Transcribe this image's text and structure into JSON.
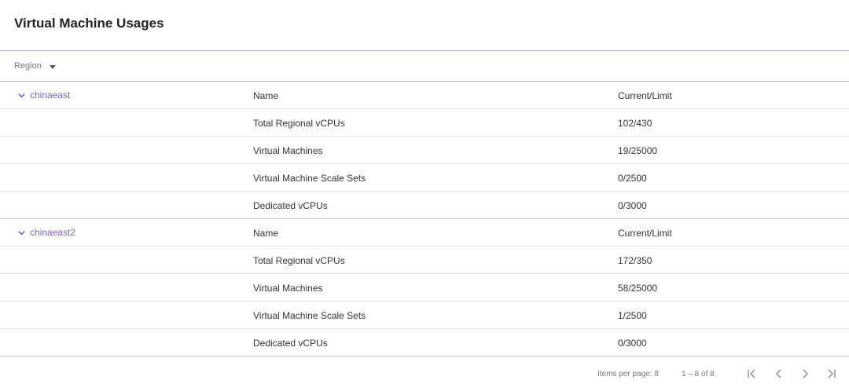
{
  "page": {
    "title": "Virtual Machine Usages"
  },
  "filter": {
    "region_label": "Region"
  },
  "groups": [
    {
      "region": "chinaeast",
      "header": {
        "name": "Name",
        "value": "Current/Limit"
      },
      "rows": [
        {
          "name": "Total Regional vCPUs",
          "value": "102/430"
        },
        {
          "name": "Virtual Machines",
          "value": "19/25000"
        },
        {
          "name": "Virtual Machine Scale Sets",
          "value": "0/2500"
        },
        {
          "name": "Dedicated vCPUs",
          "value": "0/3000"
        }
      ]
    },
    {
      "region": "chinaeast2",
      "header": {
        "name": "Name",
        "value": "Current/Limit"
      },
      "rows": [
        {
          "name": "Total Regional vCPUs",
          "value": "172/350"
        },
        {
          "name": "Virtual Machines",
          "value": "58/25000"
        },
        {
          "name": "Virtual Machine Scale Sets",
          "value": "1/2500"
        },
        {
          "name": "Dedicated vCPUs",
          "value": "0/3000"
        }
      ]
    }
  ],
  "paginator": {
    "items_per_page": "Items per page: 8",
    "range": "1 – 8 of 8",
    "icons": [
      "first-page-icon",
      "previous-page-icon",
      "next-page-icon",
      "last-page-icon"
    ]
  },
  "colors": {
    "accent": "#7b63c9",
    "divider": "#b3aee0"
  }
}
